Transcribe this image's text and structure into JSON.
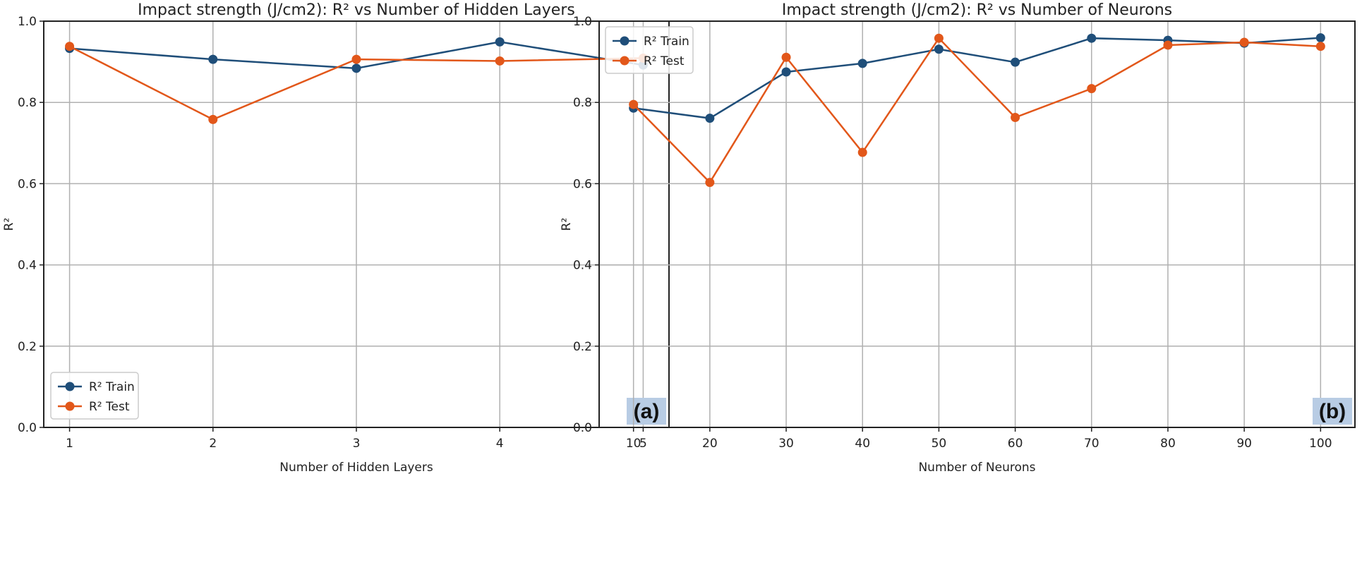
{
  "chart_data": [
    {
      "type": "line",
      "title": "Impact strength (J/cm2): R² vs Number of Hidden Layers",
      "xlabel": "Number of Hidden Layers",
      "ylabel": "R²",
      "x": [
        1,
        2,
        3,
        4,
        5
      ],
      "x_ticks": [
        "1",
        "2",
        "3",
        "4",
        "5"
      ],
      "xlim": [
        0.82,
        5.18
      ],
      "ylim": [
        0.0,
        1.0
      ],
      "y_ticks": [
        "0.0",
        "0.2",
        "0.4",
        "0.6",
        "0.8",
        "1.0"
      ],
      "grid": true,
      "legend_position": "bottom-left",
      "panel_label": "(a)",
      "series": [
        {
          "name": "R² Train",
          "color": "#1f4e79",
          "values": [
            0.933,
            0.906,
            0.884,
            0.949,
            0.892
          ]
        },
        {
          "name": "R² Test",
          "color": "#e2571a",
          "values": [
            0.938,
            0.758,
            0.906,
            0.902,
            0.909
          ]
        }
      ]
    },
    {
      "type": "line",
      "title": "Impact strength (J/cm2): R² vs Number of Neurons",
      "xlabel": "Number of Neurons",
      "ylabel": "R²",
      "x": [
        10,
        20,
        30,
        40,
        50,
        60,
        70,
        80,
        90,
        100
      ],
      "x_ticks": [
        "10",
        "20",
        "30",
        "40",
        "50",
        "60",
        "70",
        "80",
        "90",
        "100"
      ],
      "xlim": [
        5.5,
        104.5
      ],
      "ylim": [
        0.0,
        1.0
      ],
      "y_ticks": [
        "0.0",
        "0.2",
        "0.4",
        "0.6",
        "0.8",
        "1.0"
      ],
      "grid": true,
      "legend_position": "top-left",
      "panel_label": "(b)",
      "series": [
        {
          "name": "R² Train",
          "color": "#1f4e79",
          "values": [
            0.786,
            0.761,
            0.875,
            0.896,
            0.931,
            0.899,
            0.958,
            0.953,
            0.946,
            0.959
          ]
        },
        {
          "name": "R² Test",
          "color": "#e2571a",
          "values": [
            0.795,
            0.603,
            0.911,
            0.677,
            0.958,
            0.763,
            0.834,
            0.941,
            0.948,
            0.938
          ]
        }
      ]
    }
  ],
  "style": {
    "grid_color": "#b0b0b0",
    "panel_label_bg": "#b8cce4"
  }
}
